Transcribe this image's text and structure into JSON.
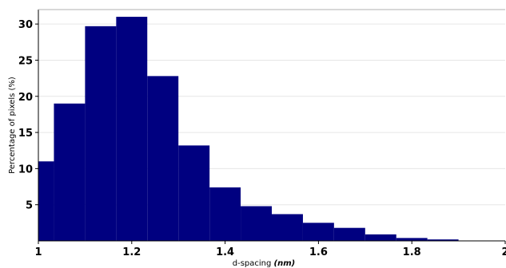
{
  "chart_data": {
    "type": "bar",
    "title": "",
    "xlabel": "d-spacing",
    "xlabel_unit": "(nm)",
    "ylabel": "Percentage of pixels (%)",
    "bin_width": 0.0667,
    "bins": [
      {
        "x0": 1.0,
        "value": 11.0
      },
      {
        "x0": 1.0333,
        "value": 19.0
      },
      {
        "x0": 1.1,
        "value": 29.7
      },
      {
        "x0": 1.1667,
        "value": 31.0
      },
      {
        "x0": 1.2333,
        "value": 22.8
      },
      {
        "x0": 1.3,
        "value": 13.2
      },
      {
        "x0": 1.3667,
        "value": 7.4
      },
      {
        "x0": 1.4333,
        "value": 4.8
      },
      {
        "x0": 1.5,
        "value": 3.7
      },
      {
        "x0": 1.5667,
        "value": 2.5
      },
      {
        "x0": 1.6333,
        "value": 1.8
      },
      {
        "x0": 1.7,
        "value": 0.9
      },
      {
        "x0": 1.7667,
        "value": 0.4
      },
      {
        "x0": 1.8333,
        "value": 0.2
      },
      {
        "x0": 1.9,
        "value": 0.05
      }
    ],
    "xlim": [
      1.0,
      2.0
    ],
    "ylim": [
      0,
      32
    ],
    "xticks": [
      "1",
      "1.2",
      "1.4",
      "1.6",
      "1.8",
      "2"
    ],
    "yticks": [
      "5",
      "10",
      "15",
      "20",
      "25",
      "30"
    ],
    "bar_color": "#000080",
    "grid": true
  }
}
